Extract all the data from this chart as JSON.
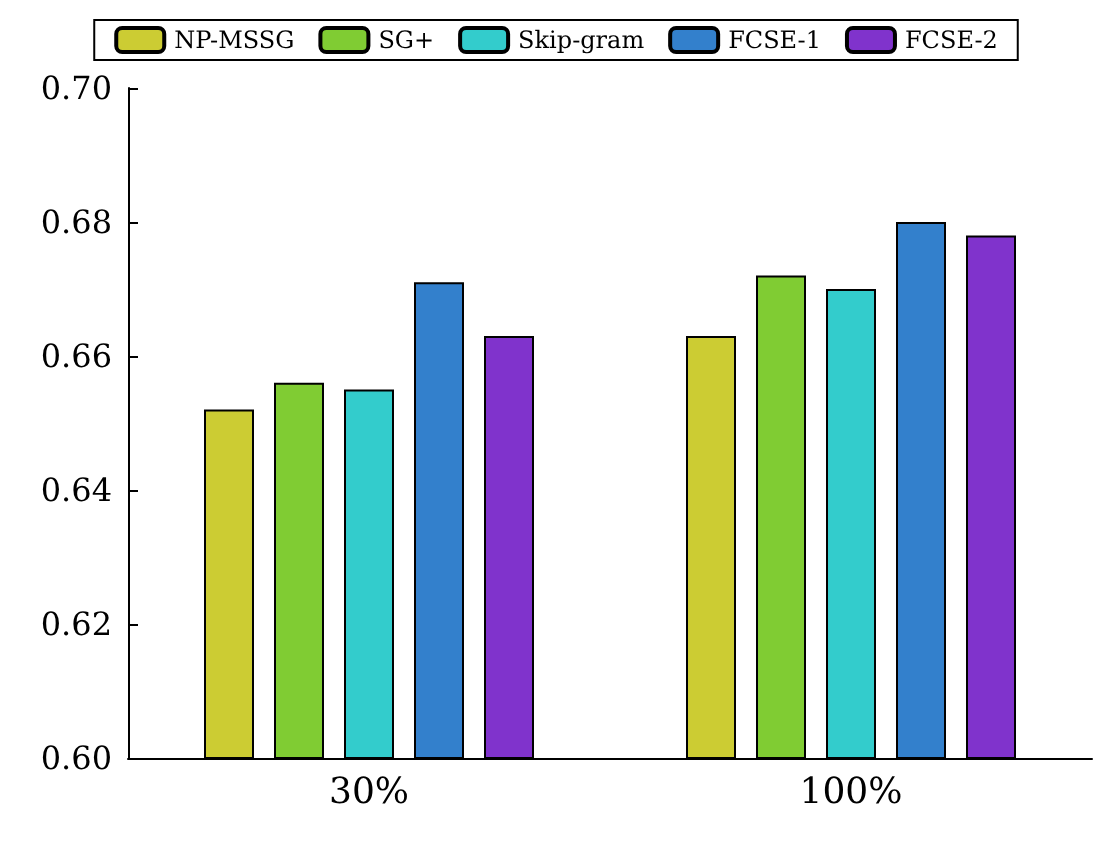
{
  "chart_data": {
    "type": "bar",
    "categories": [
      "30%",
      "100%"
    ],
    "series": [
      {
        "name": "NP-MSSG",
        "color": "#cccc33",
        "values": [
          0.652,
          0.663
        ]
      },
      {
        "name": "SG+",
        "color": "#80cc33",
        "values": [
          0.656,
          0.672
        ]
      },
      {
        "name": "Skip-gram",
        "color": "#33cccc",
        "values": [
          0.655,
          0.67
        ]
      },
      {
        "name": "FCSE-1",
        "color": "#3380cc",
        "values": [
          0.671,
          0.68
        ]
      },
      {
        "name": "FCSE-2",
        "color": "#8033cc",
        "values": [
          0.663,
          0.678
        ]
      }
    ],
    "ylim": [
      0.6,
      0.7
    ],
    "yticks": [
      {
        "value": 0.6,
        "label": "0.60"
      },
      {
        "value": 0.62,
        "label": "0.62"
      },
      {
        "value": 0.64,
        "label": "0.64"
      },
      {
        "value": 0.66,
        "label": "0.66"
      },
      {
        "value": 0.68,
        "label": "0.68"
      },
      {
        "value": 0.7,
        "label": "0.70"
      }
    ],
    "grid": false,
    "legend": "top"
  }
}
